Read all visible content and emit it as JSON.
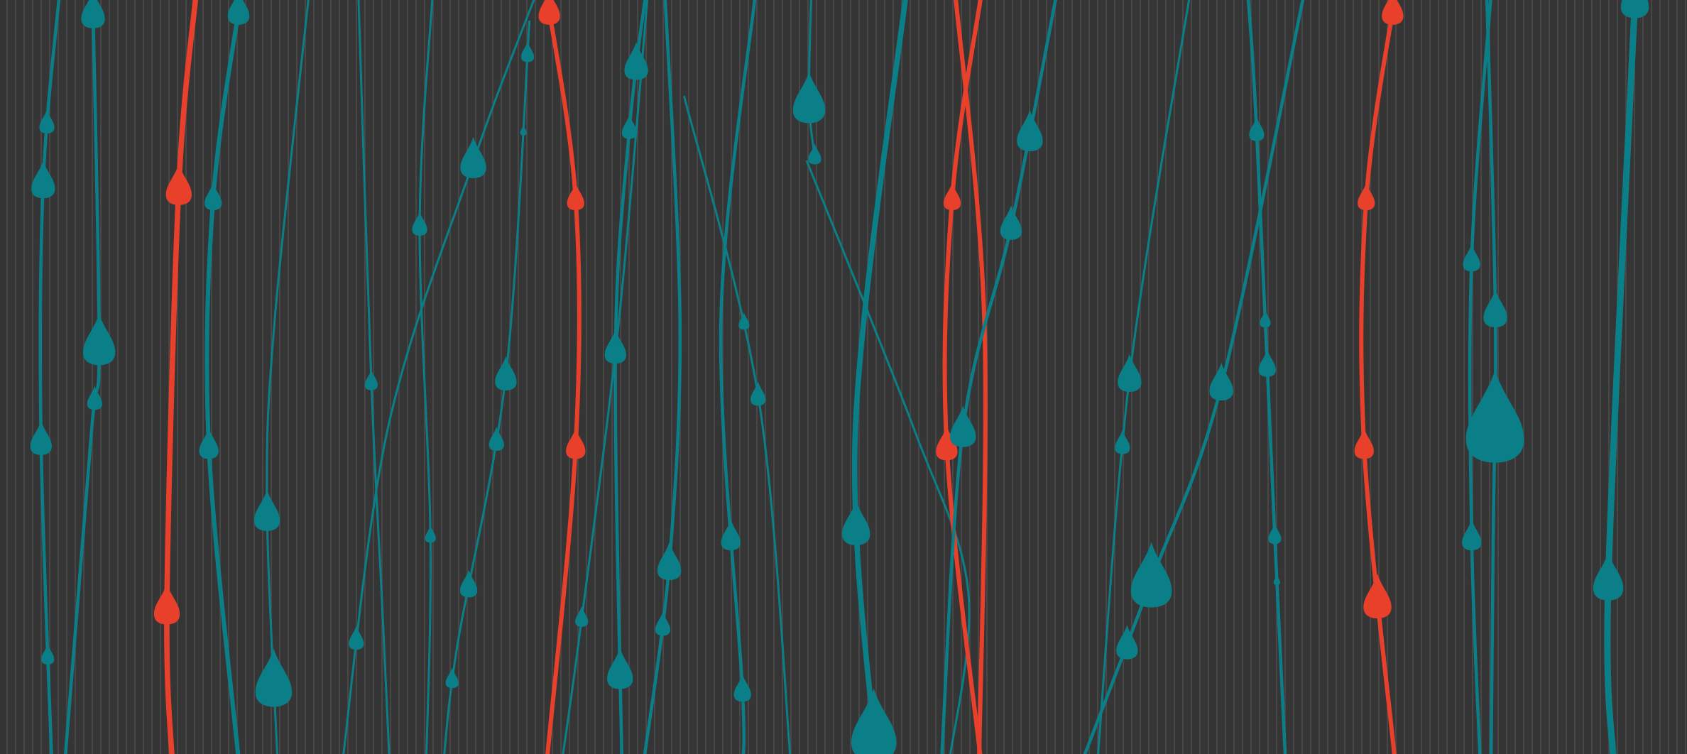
{
  "wallpaper": {
    "background_color": "#353535",
    "stripe_color": "#4a4a4a",
    "palette": {
      "teal": "#0b7f88",
      "red": "#e8402a"
    }
  }
}
